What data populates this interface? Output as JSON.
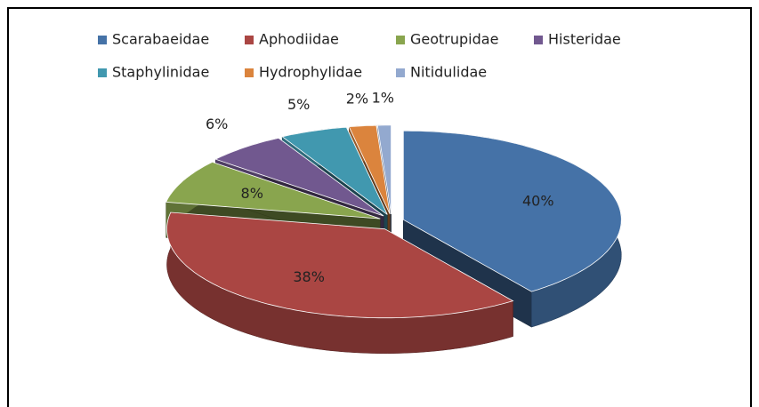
{
  "chart_data": {
    "type": "pie3d",
    "categories": [
      "Scarabaeidae",
      "Aphodiidae",
      "Geotrupidae",
      "Histeridae",
      "Staphylinidae",
      "Hydrophylidae",
      "Nitidulidae"
    ],
    "values": [
      40,
      38,
      8,
      6,
      5,
      2,
      1
    ],
    "value_labels": [
      "40%",
      "38%",
      "8%",
      "6%",
      "5%",
      "2%",
      "1%"
    ],
    "colors": [
      "#4572a7",
      "#aa4643",
      "#89a54e",
      "#71588f",
      "#4198af",
      "#db843d",
      "#93a9cf"
    ],
    "legend": "top"
  }
}
